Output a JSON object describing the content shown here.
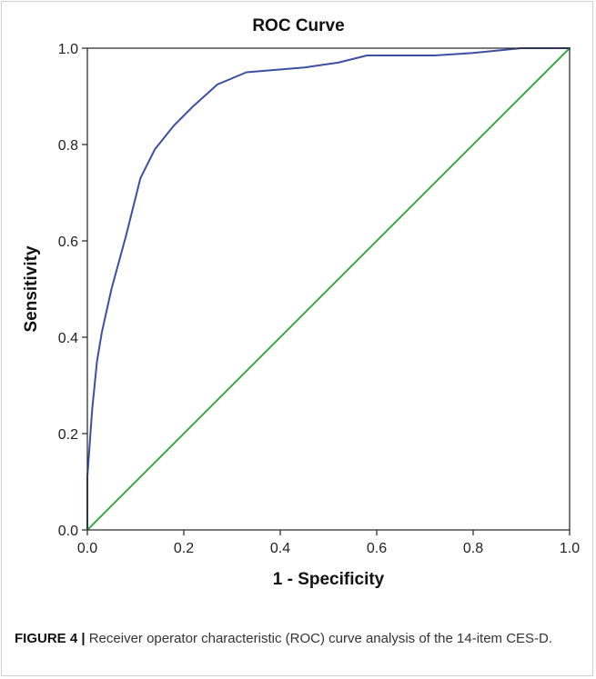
{
  "chart_data": {
    "type": "line",
    "title": "ROC Curve",
    "xlabel": "1 - Specificity",
    "ylabel": "Sensitivity",
    "xlim": [
      0,
      1
    ],
    "ylim": [
      0,
      1
    ],
    "xticks": [
      "0.0",
      "0.2",
      "0.4",
      "0.6",
      "0.8",
      "1.0"
    ],
    "yticks": [
      "0.0",
      "0.2",
      "0.4",
      "0.6",
      "0.8",
      "1.0"
    ],
    "grid": false,
    "series": [
      {
        "color": "#3d4fa3",
        "x": [
          0.0,
          0.0,
          0.01,
          0.02,
          0.03,
          0.05,
          0.08,
          0.11,
          0.14,
          0.18,
          0.22,
          0.27,
          0.33,
          0.39,
          0.45,
          0.52,
          0.58,
          0.65,
          0.72,
          0.8,
          0.85,
          0.9,
          1.0
        ],
        "y": [
          0.0,
          0.11,
          0.25,
          0.35,
          0.41,
          0.5,
          0.61,
          0.73,
          0.79,
          0.84,
          0.88,
          0.925,
          0.95,
          0.955,
          0.96,
          0.97,
          0.985,
          0.985,
          0.985,
          0.99,
          0.995,
          1.0,
          1.0
        ]
      },
      {
        "color": "#3aa845",
        "x": [
          0,
          1
        ],
        "y": [
          0,
          1
        ]
      }
    ]
  },
  "caption": {
    "label": "FIGURE 4 |",
    "text": " Receiver operator characteristic (ROC) curve analysis of the 14-item CES-D."
  }
}
